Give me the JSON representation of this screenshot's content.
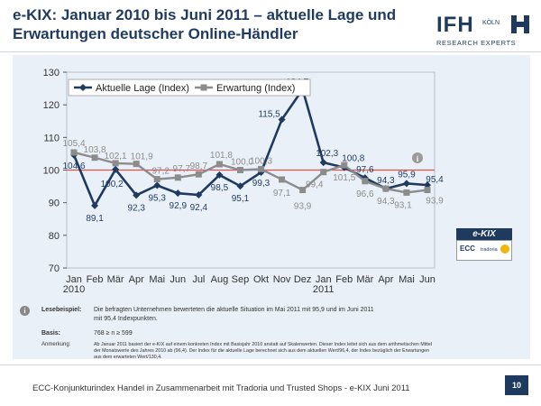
{
  "header": {
    "title": "e-KIX: Januar 2010 bis Juni 2011 – aktuelle Lage und Erwartungen deutscher Online-Händler",
    "logo_main": "IFH",
    "logo_city": "KÖLN",
    "logo_sub": "RESEARCH EXPERTS"
  },
  "badge": {
    "label": "e-KIX",
    "ecc": "ECC",
    "partner": "tradoria"
  },
  "chart_data": {
    "type": "line",
    "ylim": [
      70,
      130
    ],
    "yticks": [
      "70",
      "80",
      "90",
      "100",
      "110",
      "120",
      "130"
    ],
    "reference_line": 100,
    "categories": [
      "Jan 2010",
      "Feb",
      "Mär",
      "Apr",
      "Mai",
      "Jun",
      "Jul",
      "Aug",
      "Sep",
      "Okt",
      "Nov",
      "Dez",
      "Jan 2011",
      "Feb",
      "Mär",
      "Apr",
      "Mai",
      "Jun"
    ],
    "category_lines": [
      [
        "Jan",
        "2010"
      ],
      [
        "Feb"
      ],
      [
        "Mär"
      ],
      [
        "Apr"
      ],
      [
        "Mai"
      ],
      [
        "Jun"
      ],
      [
        "Jul"
      ],
      [
        "Aug"
      ],
      [
        "Sep"
      ],
      [
        "Okt"
      ],
      [
        "Nov"
      ],
      [
        "Dez"
      ],
      [
        "Jan",
        "2011"
      ],
      [
        "Feb"
      ],
      [
        "Mär"
      ],
      [
        "Apr"
      ],
      [
        "Mai"
      ],
      [
        "Jun"
      ]
    ],
    "legend_position": "top-left",
    "series": [
      {
        "name": "Aktuelle Lage (Index)",
        "color": "#1f3a5f",
        "values": [
          104.6,
          89.1,
          100.2,
          92.3,
          95.3,
          92.9,
          92.4,
          98.5,
          95.1,
          99.3,
          115.5,
          124.7,
          102.3,
          100.8,
          97.6,
          94.3,
          95.9,
          95.4
        ],
        "labels": [
          "104,6",
          "89,1",
          "100,2",
          "92,3",
          "95,3",
          "92,9",
          "92,4",
          "98,5",
          "95,1",
          "99,3",
          "115,5",
          "124,7",
          "102,3",
          "100,8",
          "97,6",
          "94,3",
          "95,9",
          "95,4"
        ]
      },
      {
        "name": "Erwartung (Index)",
        "color": "#8c8c8c",
        "values": [
          105.4,
          103.8,
          102.1,
          101.9,
          97.2,
          97.7,
          98.7,
          101.8,
          100.0,
          100.3,
          97.1,
          93.9,
          99.4,
          101.5,
          96.6,
          94.3,
          93.1,
          93.9
        ],
        "labels": [
          "105,4",
          "103,8",
          "102,1",
          "101,9",
          "97,2",
          "97,7",
          "98,7",
          "101,8",
          "100,0",
          "100,3",
          "97,1",
          "93,9",
          "99,4",
          "101,5",
          "96,6",
          "94,3",
          "93,1",
          "93,9"
        ]
      }
    ]
  },
  "notes": {
    "lesebeispiel_label": "Lesebeispiel:",
    "lesebeispiel_line1": "Die befragten Unternehmen bewerteten die aktuelle Situation im Mai 2011 mit 95,9 und im Juni 2011",
    "lesebeispiel_line2": "mit 95,4 Indexpunkten.",
    "basis_label": "Basis:",
    "basis_text": "768 ≥ n ≥ 599",
    "anmerkung_label": "Anmerkung:",
    "anmerkung_line1": "Ab Januar 2011 basiert der e-KIX auf einem konkreten Index mit Basisjahr 2010 anstatt auf Skalenwerten. Dieser Index leitet sich aus dem arithmetischen Mittel",
    "anmerkung_line2": "der Monatswerte des Jahres 2010 ab (96,4). Der Index für die aktuelle Lage berechnet sich aus dem aktuellen Wert/96,4, der Index bezüglich der Erwartungen",
    "anmerkung_line3": "aus dem erwarteten Wert/130,4."
  },
  "footer": {
    "text": "ECC-Konjunkturindex Handel in Zusammenarbeit mit Tradoria und Trusted Shops  - e-KIX Juni 2011",
    "page_number": "10"
  }
}
